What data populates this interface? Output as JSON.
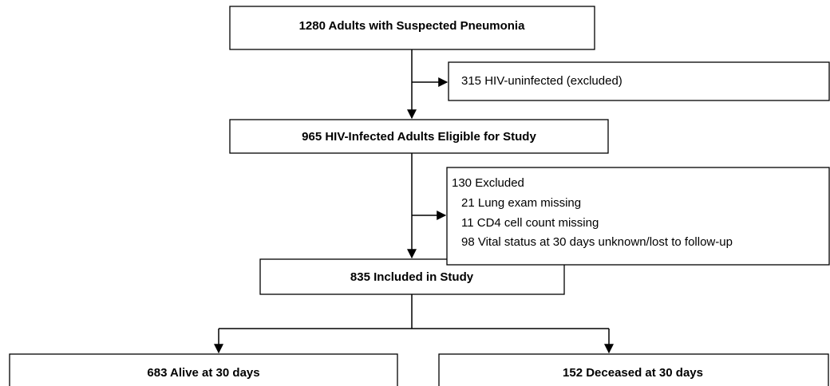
{
  "nodes": [
    {
      "label": "1280 Adults with Suspected Pneumonia"
    },
    {
      "label": "965 HIV-Infected Adults Eligible for Study"
    },
    {
      "label": "835 Included in Study"
    },
    {
      "label": "683 Alive at 30 days"
    },
    {
      "label": "152 Deceased at 30 days"
    }
  ],
  "exclusions": [
    {
      "lines": [
        "315 HIV-uninfected (excluded)"
      ]
    },
    {
      "lines": [
        "130 Excluded",
        "21 Lung exam missing",
        "11 CD4 cell count missing",
        "98 Vital status at 30 days unknown/lost to follow-up"
      ]
    }
  ]
}
